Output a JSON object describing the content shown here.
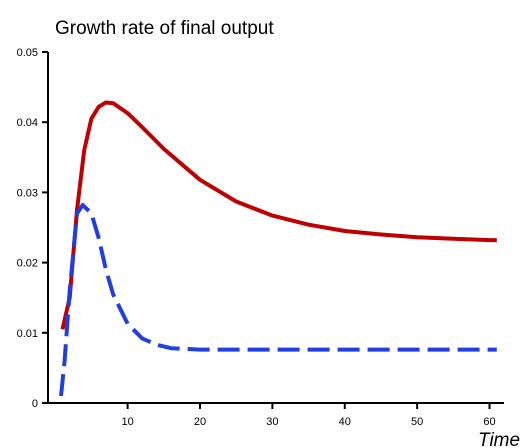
{
  "chart_data": {
    "type": "line",
    "title": "Growth rate of final output",
    "xlabel": "Time",
    "ylabel": "",
    "xlim": [
      -1,
      62
    ],
    "ylim": [
      0,
      0.05
    ],
    "xticks": [
      10,
      20,
      30,
      40,
      50,
      60
    ],
    "xtick_labels": [
      "10",
      "20",
      "30",
      "40",
      "50",
      "60"
    ],
    "yticks": [
      0,
      0.01,
      0.02,
      0.03,
      0.04,
      0.05
    ],
    "ytick_labels": [
      "0",
      "0.01",
      "0.02",
      "0.03",
      "0.04",
      "0.05"
    ],
    "grid": false,
    "legend": "none",
    "series": [
      {
        "color": "#c00000",
        "style": "solid",
        "x": [
          1,
          2,
          3,
          4,
          5,
          6,
          7,
          8,
          10,
          12,
          15,
          20,
          25,
          30,
          35,
          40,
          45,
          50,
          55,
          60,
          61
        ],
        "y": [
          0.0105,
          0.015,
          0.0275,
          0.036,
          0.0405,
          0.0422,
          0.0428,
          0.0427,
          0.0413,
          0.0393,
          0.0362,
          0.0318,
          0.0287,
          0.0267,
          0.0254,
          0.0245,
          0.024,
          0.0236,
          0.0234,
          0.0232,
          0.0232
        ]
      },
      {
        "color": "#1f3fe0",
        "style": "dashed",
        "x": [
          0.8,
          1.3,
          2,
          3,
          3.8,
          5,
          6,
          7,
          8,
          10,
          12,
          14,
          16,
          18,
          20,
          25,
          30,
          40,
          50,
          61
        ],
        "y": [
          0.001,
          0.006,
          0.016,
          0.027,
          0.0282,
          0.027,
          0.0235,
          0.019,
          0.0155,
          0.0113,
          0.0092,
          0.0083,
          0.0078,
          0.0077,
          0.0076,
          0.0076,
          0.0076,
          0.0076,
          0.0076,
          0.0076
        ]
      }
    ]
  }
}
